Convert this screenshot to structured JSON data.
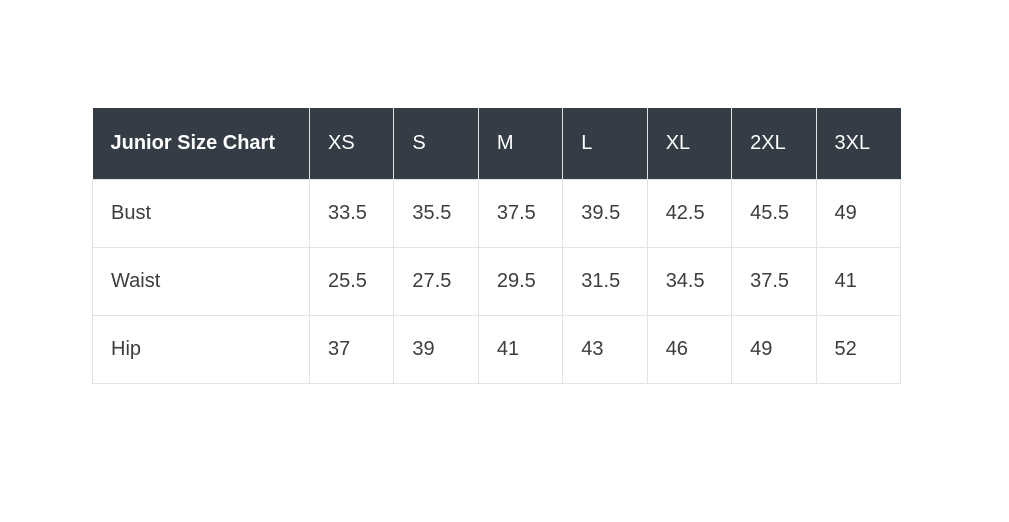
{
  "page": {
    "background_color": "#ffffff"
  },
  "style": {
    "header_bg": "#343c45",
    "header_text_color": "#ffffff",
    "body_text_color": "#3d3d3d",
    "grid_border_color": "#e2e2e2",
    "header_separator_color": "#e0e0e0"
  },
  "chart_data": {
    "type": "table",
    "title": "Junior Size Chart",
    "columns": [
      "Junior Size Chart",
      "XS",
      "S",
      "M",
      "L",
      "XL",
      "2XL",
      "3XL"
    ],
    "rows": [
      [
        "Bust",
        "33.5",
        "35.5",
        "37.5",
        "39.5",
        "42.5",
        "45.5",
        "49"
      ],
      [
        "Waist",
        "25.5",
        "27.5",
        "29.5",
        "31.5",
        "34.5",
        "37.5",
        "41"
      ],
      [
        "Hip",
        "37",
        "39",
        "41",
        "43",
        "46",
        "49",
        "52"
      ]
    ]
  }
}
